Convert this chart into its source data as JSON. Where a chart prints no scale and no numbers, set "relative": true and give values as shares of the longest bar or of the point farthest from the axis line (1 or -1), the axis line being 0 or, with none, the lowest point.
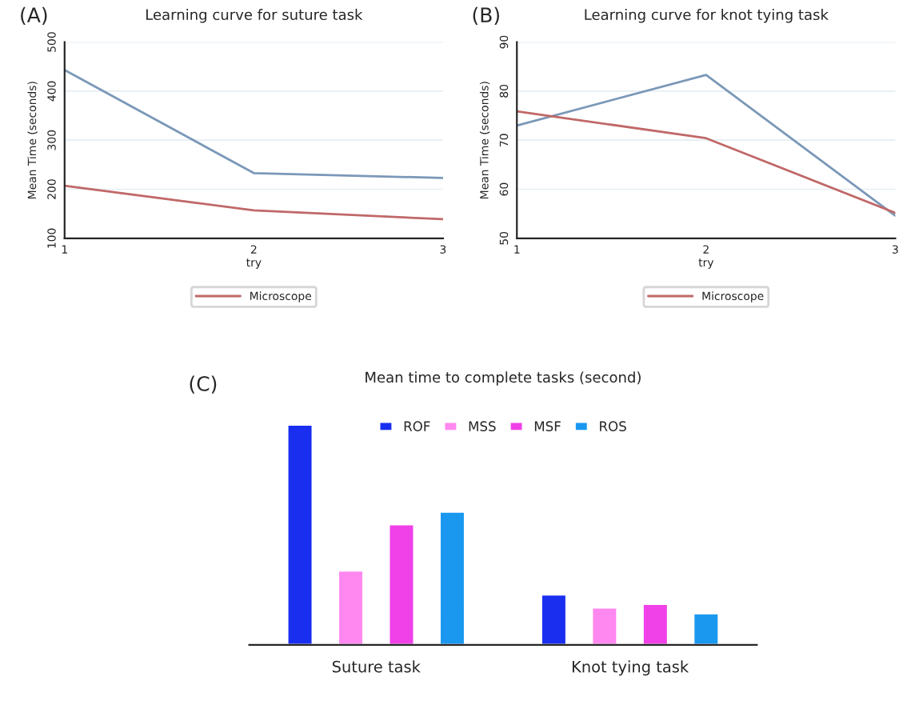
{
  "chart_data": [
    {
      "type": "line",
      "title": "Learning curve for suture task",
      "annotations": [
        "(A)"
      ],
      "xlabel": "try",
      "ylabel": "Mean Time (seconds)",
      "x": [
        1,
        2,
        3
      ],
      "xlim": [
        1,
        3
      ],
      "xticks": [
        1,
        2,
        3
      ],
      "ylim": [
        100,
        500
      ],
      "yticks": [
        100,
        200,
        300,
        400,
        500
      ],
      "grid": "y",
      "legend": "bottom",
      "series": [
        {
          "color": "#7b98b8",
          "values": [
            443,
            233,
            223
          ]
        },
        {
          "name": "Microscope",
          "color": "#c06868",
          "values": [
            207,
            157,
            139
          ]
        }
      ]
    },
    {
      "type": "line",
      "title": "Learning curve for knot tying task",
      "annotations": [
        "(B)"
      ],
      "xlabel": "try",
      "ylabel": "Mean Time (seconds)",
      "x": [
        1,
        2,
        3
      ],
      "xlim": [
        1,
        3
      ],
      "xticks": [
        1,
        2,
        3
      ],
      "ylim": [
        50,
        90
      ],
      "yticks": [
        50,
        60,
        70,
        80,
        90
      ],
      "grid": "y",
      "legend": "bottom",
      "series": [
        {
          "color": "#7b98b8",
          "values": [
            73.0,
            83.3,
            54.6
          ]
        },
        {
          "name": "Microscope",
          "color": "#c06868",
          "values": [
            75.9,
            70.4,
            55.2
          ]
        }
      ]
    },
    {
      "type": "bar",
      "title": "Mean time to complete tasks (second)",
      "annotations": [
        "(C)"
      ],
      "relative": true,
      "categories": [
        "Suture task",
        "Knot tying task"
      ],
      "legend": "top",
      "series": [
        {
          "name": "ROF",
          "color": "#1a2ef0",
          "values": [
            1,
            0.229
          ]
        },
        {
          "name": "MSS",
          "color": "#ff88f0",
          "values": [
            0.338,
            0.17
          ]
        },
        {
          "name": "MSF",
          "color": "#f040e8",
          "values": [
            0.548,
            0.186
          ]
        },
        {
          "name": "ROS",
          "color": "#1a98f0",
          "values": [
            0.605,
            0.144
          ]
        }
      ]
    }
  ]
}
